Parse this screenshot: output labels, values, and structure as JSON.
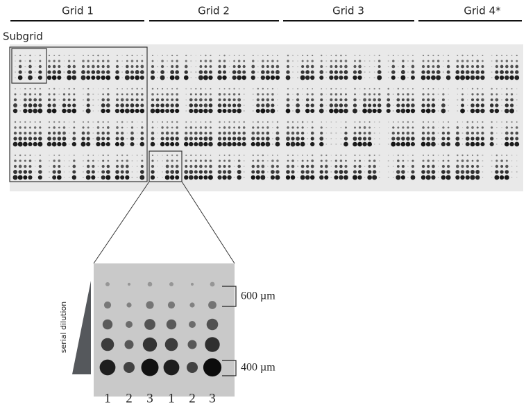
{
  "grid_labels": [
    "Grid 1",
    "Grid 2",
    "Grid 3",
    "Grid 4*"
  ],
  "subgrid_label": "Subgrid",
  "dilution_label": "serial dilution",
  "spacing_labels": [
    "600 µm",
    "400 µm"
  ],
  "column_labels": [
    "1",
    "2",
    "3",
    "1",
    "2",
    "3"
  ]
}
